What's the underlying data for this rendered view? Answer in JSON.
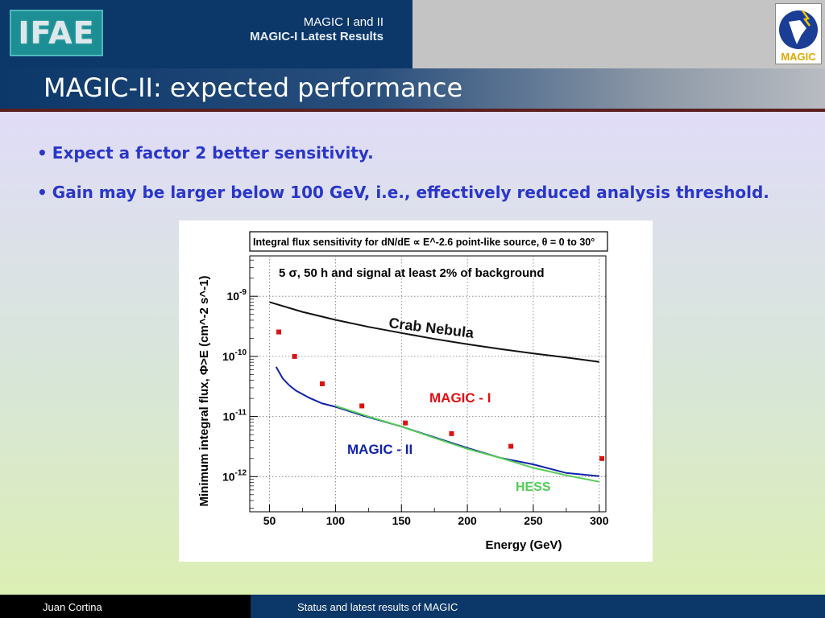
{
  "header": {
    "logo_left": "IFAE",
    "title": "MAGIC I and II",
    "subtitle": "MAGIC-I Latest Results",
    "logo_right": "MAGIC"
  },
  "slide": {
    "title": "MAGIC-II: expected performance",
    "bullets": [
      "Expect a factor 2 better sensitivity.",
      "Gain may be larger below 100 GeV, i.e., effectively reduced analysis threshold."
    ]
  },
  "chart_data": {
    "type": "line",
    "title": "Integral flux sensitivity for dN/dE ∝ E^-2.6 point-like source, θ = 0 to 30°",
    "subtitle": "5 σ, 50 h and signal at least 2% of background",
    "xlabel": "Energy (GeV)",
    "ylabel": "Minimum integral flux, Φ>E (cm^-2 s^-1)",
    "xlim": [
      35,
      305
    ],
    "ylim": [
      2.6e-13,
      4.7e-09
    ],
    "y_log_scale": true,
    "x_ticks": [
      50,
      100,
      150,
      200,
      250,
      300
    ],
    "y_ticks": [
      {
        "value": 1e-09,
        "base": "10",
        "exp": "-9"
      },
      {
        "value": 1e-10,
        "base": "10",
        "exp": "-10"
      },
      {
        "value": 1e-11,
        "base": "10",
        "exp": "-11"
      },
      {
        "value": 1e-12,
        "base": "10",
        "exp": "-12"
      }
    ],
    "grid": true,
    "series": [
      {
        "name": "Crab Nebula",
        "color": "#111111",
        "style": "line",
        "x": [
          50,
          75,
          100,
          125,
          150,
          175,
          200,
          225,
          250,
          275,
          300
        ],
        "y": [
          8e-10,
          5.5e-10,
          4.05e-10,
          3.1e-10,
          2.45e-10,
          1.95e-10,
          1.6e-10,
          1.33e-10,
          1.12e-10,
          9.6e-11,
          8.1e-11
        ]
      },
      {
        "name": "MAGIC - I",
        "color": "#dd1111",
        "style": "markers",
        "x": [
          57,
          69,
          90,
          120,
          153,
          188,
          233,
          302
        ],
        "y": [
          2.55e-10,
          1e-10,
          3.5e-11,
          1.5e-11,
          7.8e-12,
          5.2e-12,
          3.2e-12,
          2e-12
        ]
      },
      {
        "name": "MAGIC - II",
        "color": "#1122aa",
        "style": "line",
        "x": [
          55,
          60,
          65,
          70,
          80,
          90,
          100,
          120,
          150,
          175,
          200,
          225,
          250,
          275,
          300
        ],
        "y": [
          6.7e-11,
          4.3e-11,
          3.3e-11,
          2.7e-11,
          2.05e-11,
          1.65e-11,
          1.45e-11,
          1.05e-11,
          6.8e-12,
          4.5e-12,
          3e-12,
          2.05e-12,
          1.6e-12,
          1.15e-12,
          1.02e-12
        ]
      },
      {
        "name": "HESS",
        "color": "#55cc55",
        "style": "line",
        "x": [
          100,
          125,
          150,
          175,
          200,
          225,
          250,
          275,
          300
        ],
        "y": [
          1.5e-11,
          1e-11,
          6.8e-12,
          4.4e-12,
          2.9e-12,
          2.05e-12,
          1.4e-12,
          1.05e-12,
          8.2e-13
        ]
      }
    ]
  },
  "footer": {
    "author": "Juan Cortina",
    "title": "Status and latest results of MAGIC"
  }
}
